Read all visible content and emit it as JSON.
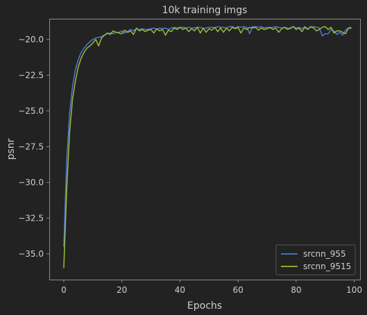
{
  "chart_data": {
    "type": "line",
    "title": "10k training imgs",
    "xlabel": "Epochs",
    "ylabel": "psnr",
    "xlim": [
      -5,
      102
    ],
    "ylim": [
      -36.8,
      -18.55
    ],
    "xticks": [
      0,
      20,
      40,
      60,
      80,
      100
    ],
    "yticks": [
      -20.0,
      -22.5,
      -25.0,
      -27.5,
      -30.0,
      -32.5,
      -35.0
    ],
    "xtick_labels": [
      "0",
      "20",
      "40",
      "60",
      "80",
      "100"
    ],
    "ytick_labels": [
      "−20.0",
      "−22.5",
      "−25.0",
      "−27.5",
      "−30.0",
      "−32.5",
      "−35.0"
    ],
    "legend_loc": "lower right",
    "grid": false,
    "series": [
      {
        "name": "srcnn_955",
        "color": "#4c78d4",
        "x": [
          0,
          1,
          2,
          3,
          4,
          5,
          6,
          7,
          8,
          9,
          10,
          11,
          12,
          13,
          14,
          15,
          16,
          17,
          18,
          19,
          20,
          21,
          22,
          23,
          24,
          25,
          26,
          27,
          28,
          29,
          30,
          31,
          32,
          33,
          34,
          35,
          36,
          37,
          38,
          39,
          40,
          41,
          42,
          43,
          44,
          45,
          46,
          47,
          48,
          49,
          50,
          51,
          52,
          53,
          54,
          55,
          56,
          57,
          58,
          59,
          60,
          61,
          62,
          63,
          64,
          65,
          66,
          67,
          68,
          69,
          70,
          71,
          72,
          73,
          74,
          75,
          76,
          77,
          78,
          79,
          80,
          81,
          82,
          83,
          84,
          85,
          86,
          87,
          88,
          89,
          90,
          91,
          92,
          93,
          94,
          95,
          96,
          97,
          98,
          99
        ],
        "values": [
          -34.5,
          -28.5,
          -25.2,
          -23.3,
          -22.1,
          -21.4,
          -20.9,
          -20.6,
          -20.35,
          -20.15,
          -20.0,
          -19.9,
          -19.85,
          -19.8,
          -19.7,
          -19.6,
          -19.55,
          -19.6,
          -19.5,
          -19.5,
          -19.4,
          -19.55,
          -19.45,
          -19.3,
          -19.4,
          -19.25,
          -19.3,
          -19.25,
          -19.3,
          -19.3,
          -19.25,
          -19.2,
          -19.3,
          -19.2,
          -19.25,
          -19.2,
          -19.3,
          -19.2,
          -19.15,
          -19.2,
          -19.15,
          -19.15,
          -19.2,
          -19.15,
          -19.2,
          -19.2,
          -19.15,
          -19.15,
          -19.25,
          -19.2,
          -19.15,
          -19.15,
          -19.2,
          -19.1,
          -19.15,
          -19.15,
          -19.2,
          -19.1,
          -19.1,
          -19.2,
          -19.1,
          -19.15,
          -19.1,
          -19.15,
          -19.6,
          -19.1,
          -19.1,
          -19.15,
          -19.1,
          -19.2,
          -19.15,
          -19.2,
          -19.15,
          -19.1,
          -19.15,
          -19.2,
          -19.15,
          -19.2,
          -19.25,
          -19.1,
          -19.2,
          -19.15,
          -19.25,
          -19.1,
          -19.25,
          -19.15,
          -19.1,
          -19.15,
          -19.2,
          -19.75,
          -19.6,
          -19.6,
          -19.3,
          -19.4,
          -19.65,
          -19.5,
          -19.7,
          -19.35,
          -19.2,
          -19.25
        ]
      },
      {
        "name": "srcnn_9515",
        "color": "#9bbb3a",
        "x": [
          0,
          1,
          2,
          3,
          4,
          5,
          6,
          7,
          8,
          9,
          10,
          11,
          12,
          13,
          14,
          15,
          16,
          17,
          18,
          19,
          20,
          21,
          22,
          23,
          24,
          25,
          26,
          27,
          28,
          29,
          30,
          31,
          32,
          33,
          34,
          35,
          36,
          37,
          38,
          39,
          40,
          41,
          42,
          43,
          44,
          45,
          46,
          47,
          48,
          49,
          50,
          51,
          52,
          53,
          54,
          55,
          56,
          57,
          58,
          59,
          60,
          61,
          62,
          63,
          64,
          65,
          66,
          67,
          68,
          69,
          70,
          71,
          72,
          73,
          74,
          75,
          76,
          77,
          78,
          79,
          80,
          81,
          82,
          83,
          84,
          85,
          86,
          87,
          88,
          89,
          90,
          91,
          92,
          93,
          94,
          95,
          96,
          97,
          98,
          99
        ],
        "values": [
          -36.0,
          -30.5,
          -26.5,
          -24.2,
          -22.9,
          -21.9,
          -21.3,
          -20.9,
          -20.6,
          -20.45,
          -20.25,
          -20.0,
          -20.45,
          -19.9,
          -19.7,
          -19.55,
          -19.65,
          -19.4,
          -19.5,
          -19.55,
          -19.6,
          -19.35,
          -19.5,
          -19.4,
          -19.65,
          -19.2,
          -19.4,
          -19.3,
          -19.45,
          -19.35,
          -19.3,
          -19.55,
          -19.25,
          -19.4,
          -19.3,
          -19.7,
          -19.35,
          -19.45,
          -19.2,
          -19.3,
          -19.15,
          -19.3,
          -19.2,
          -19.45,
          -19.25,
          -19.4,
          -19.15,
          -19.55,
          -19.2,
          -19.5,
          -19.25,
          -19.35,
          -19.15,
          -19.45,
          -19.2,
          -19.5,
          -19.2,
          -19.4,
          -19.15,
          -19.25,
          -19.15,
          -19.55,
          -19.2,
          -19.3,
          -19.15,
          -19.2,
          -19.15,
          -19.35,
          -19.2,
          -19.3,
          -19.25,
          -19.15,
          -19.3,
          -19.2,
          -19.5,
          -19.25,
          -19.15,
          -19.3,
          -19.2,
          -19.1,
          -19.3,
          -19.2,
          -19.45,
          -19.15,
          -19.3,
          -19.1,
          -19.2,
          -19.4,
          -19.3,
          -19.15,
          -19.1,
          -19.3,
          -19.15,
          -19.55,
          -19.4,
          -19.4,
          -19.5,
          -19.6,
          -19.2,
          -19.15
        ]
      }
    ]
  }
}
